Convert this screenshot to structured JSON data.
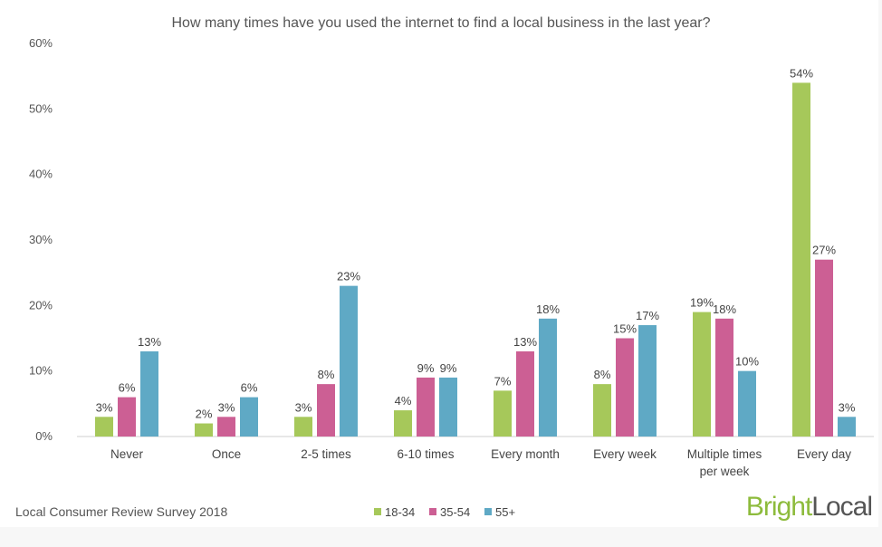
{
  "chart_data": {
    "type": "bar",
    "title": "How many times have you used the internet to find a local business in the last year?",
    "categories": [
      "Never",
      "Once",
      "2-5 times",
      "6-10 times",
      "Every month",
      "Every week",
      "Multiple times per week",
      "Every day"
    ],
    "category_lines": [
      [
        "Never"
      ],
      [
        "Once"
      ],
      [
        "2-5 times"
      ],
      [
        "6-10 times"
      ],
      [
        "Every month"
      ],
      [
        "Every week"
      ],
      [
        "Multiple times",
        "per week"
      ],
      [
        "Every day"
      ]
    ],
    "series": [
      {
        "name": "18-34",
        "color": "#a6c85a",
        "values": [
          3,
          2,
          3,
          4,
          7,
          8,
          19,
          54
        ]
      },
      {
        "name": "35-54",
        "color": "#cc5f94",
        "values": [
          6,
          3,
          8,
          9,
          13,
          15,
          18,
          27
        ]
      },
      {
        "name": "55+",
        "color": "#5fa9c5",
        "values": [
          13,
          6,
          23,
          9,
          18,
          17,
          10,
          3
        ]
      }
    ],
    "ylim": [
      0,
      60
    ],
    "yticks": [
      0,
      10,
      20,
      30,
      40,
      50,
      60
    ],
    "ytick_labels": [
      "0%",
      "10%",
      "20%",
      "30%",
      "40%",
      "50%",
      "60%"
    ],
    "value_suffix": "%",
    "legend_position": "bottom-center",
    "grid": false
  },
  "footer": {
    "source": "Local Consumer Review Survey 2018"
  },
  "logo": {
    "part1": "Bright",
    "part2": "Local",
    "color1": "#8dbb3c",
    "color2": "#555555"
  }
}
